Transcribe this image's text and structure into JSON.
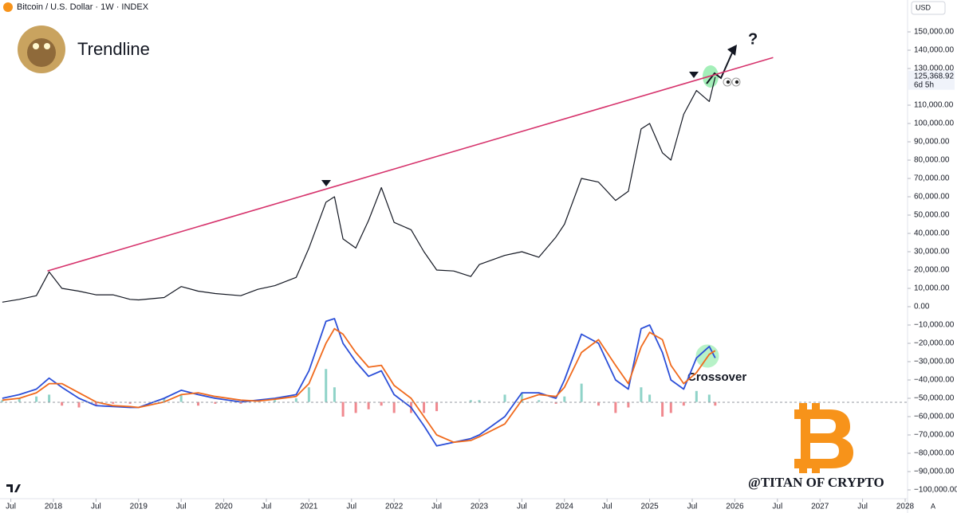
{
  "chart_data": {
    "type": "line",
    "title": "Bitcoin / U.S. Dollar · 1W · INDEX",
    "author": "Trendline",
    "currency": "USD",
    "last_price_label": "125,368.92",
    "countdown": "6d 5h",
    "annotation": "Crossover",
    "question": "?",
    "watermark": "@TITAN OF CRYPTO",
    "auto_label": "A",
    "x": [
      2017.4,
      2017.6,
      2017.8,
      2017.95,
      2018.1,
      2018.3,
      2018.5,
      2018.7,
      2018.9,
      2019.0,
      2019.3,
      2019.5,
      2019.7,
      2019.9,
      2020.2,
      2020.4,
      2020.6,
      2020.85,
      2021.0,
      2021.2,
      2021.3,
      2021.4,
      2021.55,
      2021.7,
      2021.85,
      2022.0,
      2022.2,
      2022.35,
      2022.5,
      2022.7,
      2022.9,
      2023.0,
      2023.3,
      2023.5,
      2023.7,
      2023.9,
      2024.0,
      2024.2,
      2024.4,
      2024.6,
      2024.75,
      2024.9,
      2025.0,
      2025.15,
      2025.25,
      2025.4,
      2025.55,
      2025.7,
      2025.77
    ],
    "series": [
      {
        "color": "#131722",
        "values": [
          2500,
          4000,
          6000,
          19000,
          10000,
          8500,
          6500,
          6500,
          4000,
          3700,
          5000,
          11000,
          8500,
          7200,
          6000,
          9500,
          11500,
          16000,
          32000,
          57000,
          60000,
          37000,
          32000,
          47000,
          65000,
          46000,
          42000,
          30000,
          20000,
          19500,
          16500,
          23000,
          28000,
          30000,
          27000,
          38000,
          45000,
          70000,
          68000,
          58000,
          63000,
          97000,
          100000,
          84000,
          80000,
          105000,
          118000,
          112000,
          125368.92
        ]
      },
      {
        "color": "#2c4fd8",
        "values": [
          -50000,
          -48000,
          -45000,
          -39000,
          -44000,
          -50000,
          -54000,
          -54500,
          -55000,
          -55000,
          -50000,
          -45600,
          -48000,
          -50000,
          -52000,
          -51000,
          -50000,
          -48000,
          -35000,
          -8000,
          -6500,
          -20000,
          -30000,
          -38000,
          -35000,
          -48000,
          -55000,
          -65000,
          -76000,
          -74000,
          -72000,
          -70000,
          -60000,
          -47000,
          -47000,
          -50000,
          -40000,
          -15000,
          -20000,
          -40000,
          -45000,
          -12000,
          -10000,
          -25000,
          -40000,
          -45000,
          -28000,
          -21700,
          -28000
        ]
      },
      {
        "color": "#f06a1d",
        "values": [
          -51000,
          -50000,
          -47000,
          -42000,
          -42000,
          -47000,
          -52000,
          -54000,
          -54500,
          -55000,
          -52000,
          -48000,
          -47000,
          -49000,
          -51000,
          -51500,
          -50500,
          -49000,
          -42000,
          -20000,
          -12000,
          -15000,
          -25000,
          -33000,
          -32000,
          -43000,
          -50000,
          -60000,
          -70000,
          -74000,
          -73000,
          -71000,
          -64000,
          -51000,
          -48000,
          -49000,
          -44000,
          -25000,
          -18000,
          -32000,
          -42000,
          -22000,
          -14000,
          -18000,
          -32000,
          -42000,
          -36000,
          -26000,
          -24000
        ]
      }
    ],
    "histogram": {
      "base": -52000,
      "up_color": "#8fd3c8",
      "down_color": "#f0898f",
      "values": [
        -51000,
        -50000,
        -49000,
        -48000,
        -54000,
        -55000,
        -54000,
        -53000,
        -53000,
        -52000,
        -50000,
        -48000,
        -54000,
        -53000,
        -53000,
        -52000,
        -51000,
        -50000,
        -44000,
        -34000,
        -44000,
        -60000,
        -58000,
        -56000,
        -54000,
        -58000,
        -58000,
        -58000,
        -57000,
        -52000,
        -51000,
        -51000,
        -48000,
        -47000,
        -51000,
        -53000,
        -49000,
        -42000,
        -54000,
        -58000,
        -55000,
        -44000,
        -48000,
        -60000,
        -58000,
        -54000,
        -46000,
        -48000,
        -54000
      ]
    },
    "trendline": {
      "color": "#d6336c",
      "x": [
        2017.93,
        2026.45
      ],
      "values": [
        19500,
        136000
      ]
    },
    "xlim": [
      2017.373,
      2028.0
    ],
    "ylim": [
      -105650,
      167400
    ],
    "xticks": [
      {
        "value": 2017.5,
        "label": "Jul"
      },
      {
        "value": 2018,
        "label": "2018"
      },
      {
        "value": 2018.5,
        "label": "Jul"
      },
      {
        "value": 2019,
        "label": "2019"
      },
      {
        "value": 2019.5,
        "label": "Jul"
      },
      {
        "value": 2020,
        "label": "2020"
      },
      {
        "value": 2020.5,
        "label": "Jul"
      },
      {
        "value": 2021,
        "label": "2021"
      },
      {
        "value": 2021.5,
        "label": "Jul"
      },
      {
        "value": 2022,
        "label": "2022"
      },
      {
        "value": 2022.5,
        "label": "Jul"
      },
      {
        "value": 2023,
        "label": "2023"
      },
      {
        "value": 2023.5,
        "label": "Jul"
      },
      {
        "value": 2024,
        "label": "2024"
      },
      {
        "value": 2024.5,
        "label": "Jul"
      },
      {
        "value": 2025,
        "label": "2025"
      },
      {
        "value": 2025.5,
        "label": "Jul"
      },
      {
        "value": 2026,
        "label": "2026"
      },
      {
        "value": 2026.5,
        "label": "Jul"
      },
      {
        "value": 2027,
        "label": "2027"
      },
      {
        "value": 2027.5,
        "label": "Jul"
      },
      {
        "value": 2028,
        "label": "2028"
      }
    ],
    "yticks": [
      {
        "value": 150000,
        "label": "150,000.00"
      },
      {
        "value": 140000,
        "label": "140,000.00"
      },
      {
        "value": 130000,
        "label": "130,000.00"
      },
      {
        "value": 110000,
        "label": "110,000.00"
      },
      {
        "value": 100000,
        "label": "100,000.00"
      },
      {
        "value": 90000,
        "label": "90,000.00"
      },
      {
        "value": 80000,
        "label": "80,000.00"
      },
      {
        "value": 70000,
        "label": "70,000.00"
      },
      {
        "value": 60000,
        "label": "60,000.00"
      },
      {
        "value": 50000,
        "label": "50,000.00"
      },
      {
        "value": 40000,
        "label": "40,000.00"
      },
      {
        "value": 30000,
        "label": "30,000.00"
      },
      {
        "value": 20000,
        "label": "20,000.00"
      },
      {
        "value": 10000,
        "label": "10,000.00"
      },
      {
        "value": 0,
        "label": "0.00"
      },
      {
        "value": -10000,
        "label": "−10,000.00"
      },
      {
        "value": -20000,
        "label": "−20,000.00"
      },
      {
        "value": -30000,
        "label": "−30,000.00"
      },
      {
        "value": -40000,
        "label": "−40,000.00"
      },
      {
        "value": -50000,
        "label": "−50,000.00"
      },
      {
        "value": -60000,
        "label": "−60,000.00"
      },
      {
        "value": -70000,
        "label": "−70,000.00"
      },
      {
        "value": -80000,
        "label": "−80,000.00"
      },
      {
        "value": -90000,
        "label": "−90,000.00"
      },
      {
        "value": -100000,
        "label": "−100,000.00"
      }
    ]
  }
}
